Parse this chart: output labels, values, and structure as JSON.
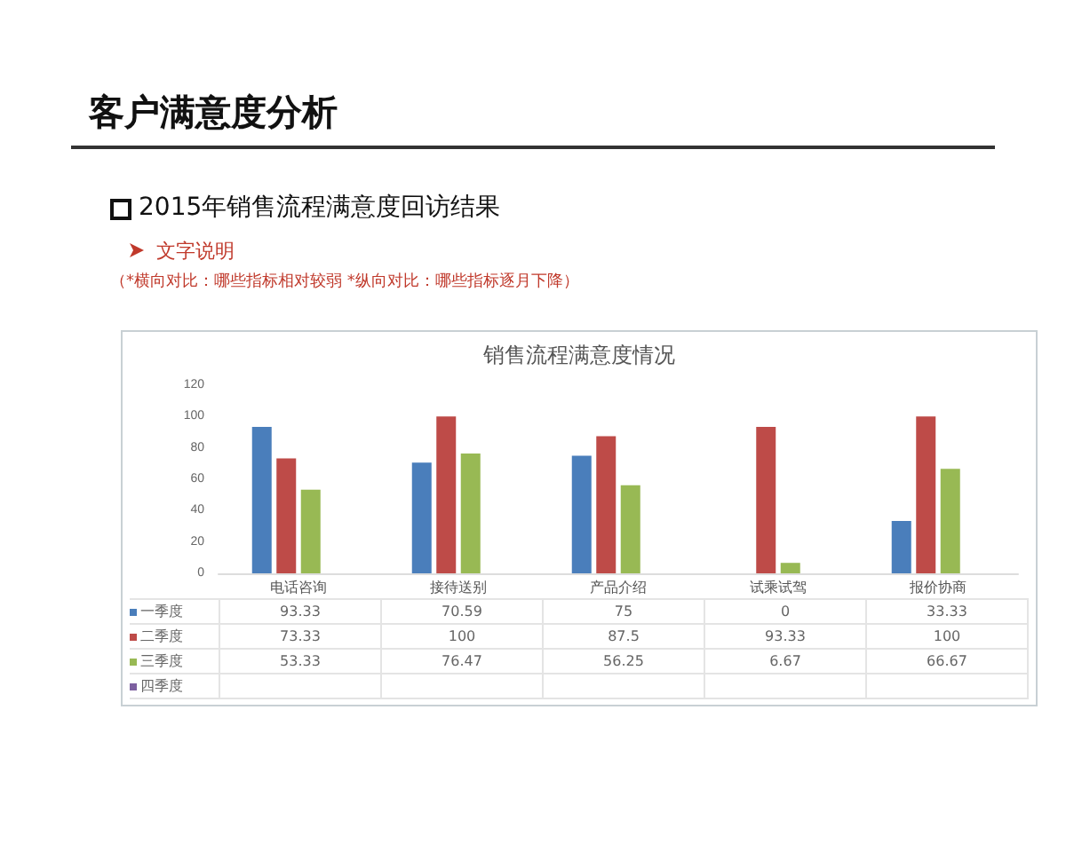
{
  "chart_data": {
    "type": "bar",
    "title": "销售流程满意度情况",
    "annotations": [
      "客户满意度分析",
      "2015年销售流程满意度回访结果",
      "文字说明",
      "（*横向对比：哪些指标相对较弱   *纵向对比：哪些指标逐月下降）"
    ],
    "categories": [
      "电话咨询",
      "接待送别",
      "产品介绍",
      "试乘试驾",
      "报价协商"
    ],
    "series": [
      {
        "name": "一季度",
        "color": "#4a7ebb",
        "values": [
          93.33,
          70.59,
          75,
          0,
          33.33
        ]
      },
      {
        "name": "二季度",
        "color": "#be4b48",
        "values": [
          73.33,
          100,
          87.5,
          93.33,
          100
        ]
      },
      {
        "name": "三季度",
        "color": "#98b954",
        "values": [
          53.33,
          76.47,
          56.25,
          6.67,
          66.67
        ]
      },
      {
        "name": "四季度",
        "color": "#7d60a0",
        "values": [
          null,
          null,
          null,
          null,
          null
        ]
      }
    ],
    "ylim": [
      0,
      120
    ],
    "yticks": [
      0,
      20,
      40,
      60,
      80,
      100,
      120
    ],
    "grid": false,
    "data_labels": true,
    "legend": "bottom left"
  }
}
